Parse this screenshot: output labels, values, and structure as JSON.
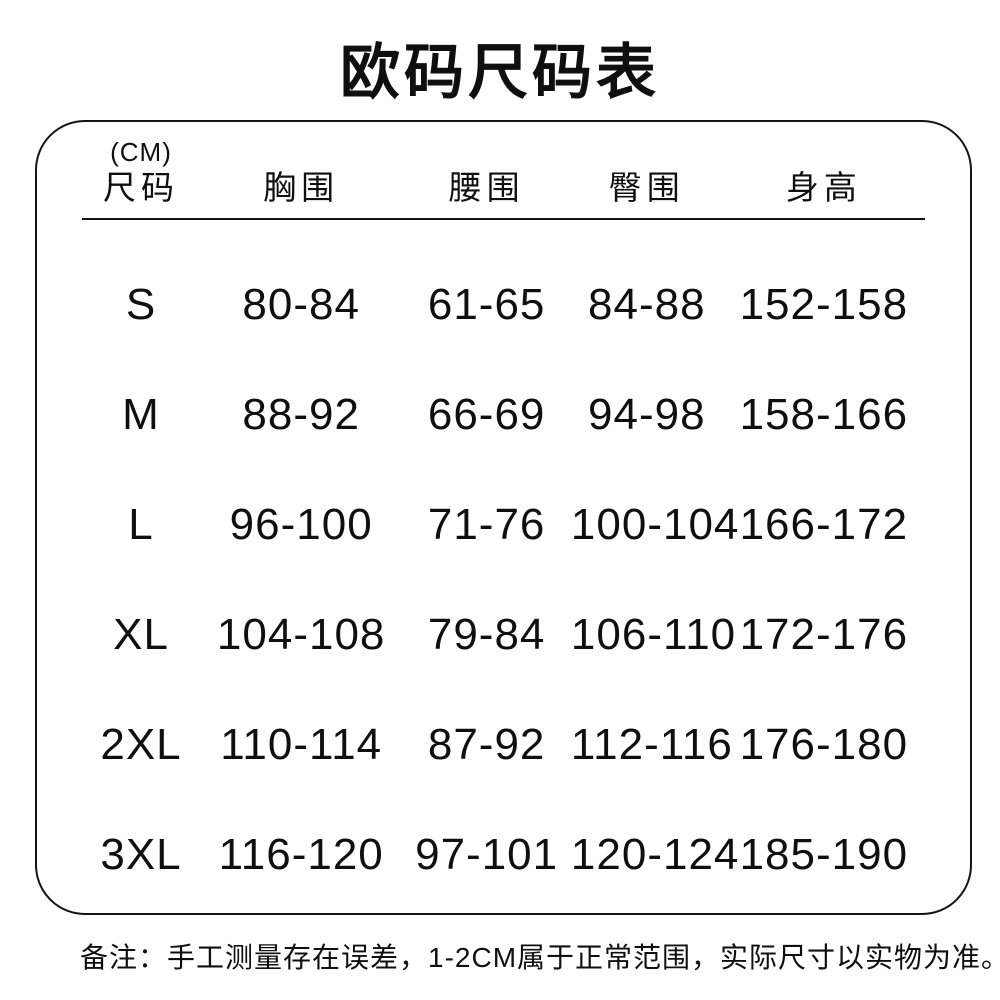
{
  "title": "欧码尺码表",
  "table": {
    "unit_label": "(CM)",
    "headers": {
      "size": "尺码",
      "chest": "胸围",
      "waist": "腰围",
      "hip": "臀围",
      "height": "身高"
    },
    "rows": [
      {
        "size": "S",
        "chest": "80-84",
        "waist": "61-65",
        "hip": "84-88",
        "height": "152-158"
      },
      {
        "size": "M",
        "chest": "88-92",
        "waist": "66-69",
        "hip": "94-98",
        "height": "158-166"
      },
      {
        "size": "L",
        "chest": "96-100",
        "waist": "71-76",
        "hip": "100-104",
        "height": "166-172"
      },
      {
        "size": "XL",
        "chest": "104-108",
        "waist": "79-84",
        "hip": "106-110",
        "height": "172-176"
      },
      {
        "size": "2XL",
        "chest": "110-114",
        "waist": "87-92",
        "hip": "112-116",
        "height": "176-180"
      },
      {
        "size": "3XL",
        "chest": "116-120",
        "waist": "97-101",
        "hip": "120-124",
        "height": "185-190"
      }
    ]
  },
  "note": "备注：手工测量存在误差，1-2CM属于正常范围，实际尺寸以实物为准。",
  "colors": {
    "text": "#0f0f0f",
    "border": "#141414",
    "background": "#ffffff"
  },
  "chart_data": {
    "type": "table",
    "title": "欧码尺码表",
    "unit": "CM",
    "columns": [
      "尺码",
      "胸围",
      "腰围",
      "臀围",
      "身高"
    ],
    "rows": [
      [
        "S",
        "80-84",
        "61-65",
        "84-88",
        "152-158"
      ],
      [
        "M",
        "88-92",
        "66-69",
        "94-98",
        "158-166"
      ],
      [
        "L",
        "96-100",
        "71-76",
        "100-104",
        "166-172"
      ],
      [
        "XL",
        "104-108",
        "79-84",
        "106-110",
        "172-176"
      ],
      [
        "2XL",
        "110-114",
        "87-92",
        "112-116",
        "176-180"
      ],
      [
        "3XL",
        "116-120",
        "97-101",
        "120-124",
        "185-190"
      ]
    ],
    "footnote": "备注：手工测量存在误差，1-2CM属于正常范围，实际尺寸以实物为准。"
  }
}
